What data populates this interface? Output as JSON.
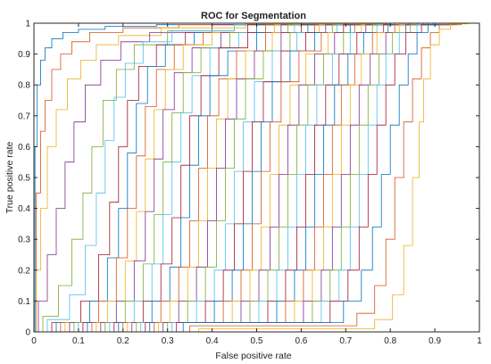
{
  "chart_data": {
    "type": "line",
    "title": "ROC for Segmentation",
    "xlabel": "False positive rate",
    "ylabel": "True positive rate",
    "xlim": [
      0,
      1
    ],
    "ylim": [
      0,
      1
    ],
    "x_ticks": [
      "0",
      "0.1",
      "0.2",
      "0.3",
      "0.4",
      "0.5",
      "0.6",
      "0.7",
      "0.8",
      "0.9",
      "1"
    ],
    "y_ticks": [
      "0",
      "0.1",
      "0.2",
      "0.3",
      "0.4",
      "0.5",
      "0.6",
      "0.7",
      "0.8",
      "0.9",
      "1"
    ],
    "grid": false,
    "legend": "none",
    "series_colors": [
      "#0072BD",
      "#D95319",
      "#EDB120",
      "#7E2F8E",
      "#77AC30",
      "#4DBEEE",
      "#A2142F"
    ],
    "series": [
      {
        "x": [
          0,
          0.005,
          0.01,
          0.02,
          0.03,
          0.05,
          0.08,
          0.12,
          0.2,
          0.35,
          0.6,
          1
        ],
        "y": [
          0,
          0.6,
          0.8,
          0.88,
          0.92,
          0.95,
          0.97,
          0.98,
          0.99,
          0.995,
          1,
          1
        ]
      },
      {
        "x": [
          0,
          0.01,
          0.02,
          0.03,
          0.05,
          0.07,
          0.1,
          0.15,
          0.25,
          0.4,
          0.7,
          1
        ],
        "y": [
          0,
          0.45,
          0.65,
          0.75,
          0.85,
          0.9,
          0.94,
          0.97,
          0.985,
          0.995,
          1,
          1
        ]
      },
      {
        "x": [
          0,
          0.01,
          0.02,
          0.04,
          0.06,
          0.09,
          0.12,
          0.16,
          0.22,
          0.35,
          0.6,
          1
        ],
        "y": [
          0,
          0.2,
          0.4,
          0.6,
          0.72,
          0.82,
          0.88,
          0.93,
          0.96,
          0.985,
          0.998,
          1
        ]
      },
      {
        "x": [
          0,
          0.02,
          0.04,
          0.06,
          0.08,
          0.1,
          0.13,
          0.17,
          0.22,
          0.3,
          0.5,
          1
        ],
        "y": [
          0,
          0.1,
          0.25,
          0.4,
          0.55,
          0.68,
          0.8,
          0.88,
          0.94,
          0.97,
          0.995,
          1
        ]
      },
      {
        "x": [
          0,
          0.04,
          0.07,
          0.1,
          0.12,
          0.14,
          0.17,
          0.2,
          0.25,
          0.35,
          0.55,
          1
        ],
        "y": [
          0,
          0.05,
          0.15,
          0.3,
          0.45,
          0.6,
          0.75,
          0.85,
          0.93,
          0.975,
          0.995,
          1
        ]
      },
      {
        "x": [
          0,
          0.06,
          0.1,
          0.13,
          0.15,
          0.17,
          0.19,
          0.22,
          0.27,
          0.35,
          0.55,
          1
        ],
        "y": [
          0,
          0.04,
          0.12,
          0.28,
          0.45,
          0.62,
          0.76,
          0.87,
          0.94,
          0.975,
          0.995,
          1
        ]
      },
      {
        "x": [
          0,
          0.08,
          0.13,
          0.16,
          0.18,
          0.2,
          0.22,
          0.25,
          0.3,
          0.38,
          0.58,
          1
        ],
        "y": [
          0,
          0.03,
          0.1,
          0.25,
          0.42,
          0.6,
          0.75,
          0.86,
          0.93,
          0.97,
          0.995,
          1
        ]
      },
      {
        "x": [
          0,
          0.1,
          0.15,
          0.18,
          0.2,
          0.22,
          0.24,
          0.27,
          0.32,
          0.4,
          0.6,
          1
        ],
        "y": [
          0,
          0.03,
          0.1,
          0.24,
          0.4,
          0.58,
          0.74,
          0.86,
          0.93,
          0.97,
          0.995,
          1
        ]
      },
      {
        "x": [
          0,
          0.12,
          0.17,
          0.2,
          0.22,
          0.24,
          0.26,
          0.29,
          0.34,
          0.42,
          0.62,
          1
        ],
        "y": [
          0,
          0.03,
          0.1,
          0.24,
          0.4,
          0.57,
          0.73,
          0.85,
          0.93,
          0.97,
          0.995,
          1
        ]
      },
      {
        "x": [
          0,
          0.14,
          0.19,
          0.22,
          0.24,
          0.26,
          0.28,
          0.31,
          0.36,
          0.44,
          0.64,
          1
        ],
        "y": [
          0,
          0.03,
          0.1,
          0.23,
          0.39,
          0.56,
          0.72,
          0.85,
          0.93,
          0.97,
          0.995,
          1
        ]
      },
      {
        "x": [
          0,
          0.16,
          0.21,
          0.24,
          0.26,
          0.28,
          0.3,
          0.33,
          0.38,
          0.46,
          0.65,
          1
        ],
        "y": [
          0,
          0.03,
          0.1,
          0.23,
          0.39,
          0.56,
          0.72,
          0.84,
          0.92,
          0.97,
          0.995,
          1
        ]
      },
      {
        "x": [
          0,
          0.18,
          0.23,
          0.26,
          0.28,
          0.3,
          0.32,
          0.35,
          0.4,
          0.48,
          0.66,
          1
        ],
        "y": [
          0,
          0.03,
          0.1,
          0.22,
          0.38,
          0.55,
          0.71,
          0.84,
          0.92,
          0.97,
          0.995,
          1
        ]
      },
      {
        "x": [
          0,
          0.2,
          0.25,
          0.28,
          0.3,
          0.32,
          0.34,
          0.37,
          0.42,
          0.5,
          0.67,
          1
        ],
        "y": [
          0,
          0.03,
          0.1,
          0.22,
          0.38,
          0.55,
          0.71,
          0.83,
          0.92,
          0.97,
          0.995,
          1
        ]
      },
      {
        "x": [
          0,
          0.22,
          0.27,
          0.3,
          0.32,
          0.34,
          0.36,
          0.39,
          0.44,
          0.52,
          0.68,
          1
        ],
        "y": [
          0,
          0.03,
          0.1,
          0.22,
          0.37,
          0.54,
          0.7,
          0.83,
          0.92,
          0.97,
          0.995,
          1
        ]
      },
      {
        "x": [
          0,
          0.24,
          0.29,
          0.32,
          0.34,
          0.36,
          0.38,
          0.41,
          0.46,
          0.54,
          0.69,
          1
        ],
        "y": [
          0,
          0.03,
          0.1,
          0.21,
          0.37,
          0.54,
          0.7,
          0.83,
          0.91,
          0.97,
          0.995,
          1
        ]
      },
      {
        "x": [
          0,
          0.26,
          0.31,
          0.34,
          0.36,
          0.38,
          0.4,
          0.43,
          0.48,
          0.56,
          0.7,
          1
        ],
        "y": [
          0,
          0.03,
          0.1,
          0.21,
          0.36,
          0.53,
          0.7,
          0.82,
          0.91,
          0.97,
          0.995,
          1
        ]
      },
      {
        "x": [
          0,
          0.28,
          0.33,
          0.36,
          0.38,
          0.4,
          0.42,
          0.45,
          0.5,
          0.57,
          0.71,
          1
        ],
        "y": [
          0,
          0.03,
          0.1,
          0.21,
          0.36,
          0.53,
          0.69,
          0.82,
          0.91,
          0.97,
          0.995,
          1
        ]
      },
      {
        "x": [
          0,
          0.3,
          0.35,
          0.38,
          0.4,
          0.42,
          0.44,
          0.47,
          0.52,
          0.59,
          0.72,
          1
        ],
        "y": [
          0,
          0.03,
          0.1,
          0.21,
          0.36,
          0.53,
          0.69,
          0.82,
          0.91,
          0.97,
          0.995,
          1
        ]
      },
      {
        "x": [
          0,
          0.32,
          0.37,
          0.4,
          0.42,
          0.44,
          0.46,
          0.49,
          0.54,
          0.61,
          0.73,
          1
        ],
        "y": [
          0,
          0.03,
          0.1,
          0.21,
          0.36,
          0.53,
          0.69,
          0.82,
          0.91,
          0.97,
          0.995,
          1
        ]
      },
      {
        "x": [
          0,
          0.34,
          0.39,
          0.42,
          0.44,
          0.46,
          0.48,
          0.51,
          0.56,
          0.62,
          0.74,
          1
        ],
        "y": [
          0,
          0.03,
          0.1,
          0.2,
          0.35,
          0.52,
          0.68,
          0.81,
          0.91,
          0.97,
          0.995,
          1
        ]
      },
      {
        "x": [
          0,
          0.36,
          0.41,
          0.44,
          0.46,
          0.48,
          0.5,
          0.53,
          0.58,
          0.64,
          0.75,
          1
        ],
        "y": [
          0,
          0.03,
          0.1,
          0.2,
          0.35,
          0.52,
          0.68,
          0.81,
          0.91,
          0.97,
          0.995,
          1
        ]
      },
      {
        "x": [
          0,
          0.38,
          0.43,
          0.46,
          0.48,
          0.5,
          0.52,
          0.55,
          0.6,
          0.66,
          0.76,
          1
        ],
        "y": [
          0,
          0.03,
          0.1,
          0.2,
          0.35,
          0.52,
          0.68,
          0.81,
          0.91,
          0.97,
          0.995,
          1
        ]
      },
      {
        "x": [
          0,
          0.4,
          0.45,
          0.48,
          0.5,
          0.52,
          0.54,
          0.57,
          0.62,
          0.67,
          0.77,
          1
        ],
        "y": [
          0,
          0.03,
          0.1,
          0.2,
          0.35,
          0.52,
          0.68,
          0.81,
          0.91,
          0.97,
          0.995,
          1
        ]
      },
      {
        "x": [
          0,
          0.42,
          0.47,
          0.5,
          0.52,
          0.54,
          0.56,
          0.59,
          0.63,
          0.69,
          0.78,
          1
        ],
        "y": [
          0,
          0.03,
          0.1,
          0.2,
          0.34,
          0.51,
          0.67,
          0.8,
          0.9,
          0.97,
          0.995,
          1
        ]
      },
      {
        "x": [
          0,
          0.44,
          0.49,
          0.52,
          0.54,
          0.56,
          0.58,
          0.61,
          0.65,
          0.7,
          0.79,
          1
        ],
        "y": [
          0,
          0.03,
          0.1,
          0.2,
          0.34,
          0.51,
          0.67,
          0.8,
          0.9,
          0.97,
          0.995,
          1
        ]
      },
      {
        "x": [
          0,
          0.46,
          0.51,
          0.54,
          0.56,
          0.58,
          0.6,
          0.63,
          0.67,
          0.72,
          0.8,
          1
        ],
        "y": [
          0,
          0.03,
          0.1,
          0.2,
          0.34,
          0.51,
          0.67,
          0.8,
          0.9,
          0.97,
          0.995,
          1
        ]
      },
      {
        "x": [
          0,
          0.48,
          0.53,
          0.56,
          0.58,
          0.6,
          0.62,
          0.65,
          0.69,
          0.73,
          0.81,
          1
        ],
        "y": [
          0,
          0.03,
          0.1,
          0.2,
          0.34,
          0.51,
          0.67,
          0.8,
          0.9,
          0.97,
          0.995,
          1
        ]
      },
      {
        "x": [
          0,
          0.5,
          0.55,
          0.58,
          0.6,
          0.62,
          0.64,
          0.67,
          0.7,
          0.75,
          0.82,
          1
        ],
        "y": [
          0,
          0.03,
          0.1,
          0.2,
          0.34,
          0.51,
          0.67,
          0.8,
          0.9,
          0.97,
          0.995,
          1
        ]
      },
      {
        "x": [
          0,
          0.52,
          0.57,
          0.6,
          0.62,
          0.64,
          0.66,
          0.69,
          0.72,
          0.76,
          0.83,
          1
        ],
        "y": [
          0,
          0.03,
          0.1,
          0.2,
          0.34,
          0.51,
          0.67,
          0.8,
          0.9,
          0.97,
          0.995,
          1
        ]
      },
      {
        "x": [
          0,
          0.54,
          0.59,
          0.62,
          0.64,
          0.66,
          0.68,
          0.7,
          0.74,
          0.78,
          0.84,
          1
        ],
        "y": [
          0,
          0.03,
          0.1,
          0.2,
          0.34,
          0.51,
          0.67,
          0.8,
          0.9,
          0.97,
          0.995,
          1
        ]
      },
      {
        "x": [
          0,
          0.56,
          0.61,
          0.64,
          0.66,
          0.68,
          0.7,
          0.72,
          0.75,
          0.79,
          0.85,
          1
        ],
        "y": [
          0,
          0.03,
          0.1,
          0.2,
          0.34,
          0.51,
          0.67,
          0.8,
          0.9,
          0.97,
          0.995,
          1
        ]
      },
      {
        "x": [
          0,
          0.58,
          0.63,
          0.66,
          0.68,
          0.7,
          0.72,
          0.74,
          0.77,
          0.81,
          0.86,
          1
        ],
        "y": [
          0,
          0.03,
          0.1,
          0.2,
          0.34,
          0.51,
          0.67,
          0.8,
          0.9,
          0.97,
          0.995,
          1
        ]
      },
      {
        "x": [
          0,
          0.6,
          0.65,
          0.68,
          0.7,
          0.72,
          0.74,
          0.76,
          0.79,
          0.82,
          0.87,
          1
        ],
        "y": [
          0,
          0.03,
          0.1,
          0.2,
          0.34,
          0.51,
          0.67,
          0.8,
          0.9,
          0.97,
          0.995,
          1
        ]
      },
      {
        "x": [
          0,
          0.62,
          0.67,
          0.7,
          0.72,
          0.74,
          0.76,
          0.78,
          0.8,
          0.84,
          0.88,
          1
        ],
        "y": [
          0,
          0.03,
          0.1,
          0.2,
          0.34,
          0.51,
          0.67,
          0.8,
          0.9,
          0.97,
          0.995,
          1
        ]
      },
      {
        "x": [
          0,
          0.64,
          0.69,
          0.72,
          0.74,
          0.76,
          0.78,
          0.8,
          0.82,
          0.85,
          0.89,
          1
        ],
        "y": [
          0,
          0.03,
          0.1,
          0.2,
          0.34,
          0.51,
          0.67,
          0.8,
          0.9,
          0.97,
          0.995,
          1
        ]
      },
      {
        "x": [
          0,
          0.67,
          0.72,
          0.75,
          0.77,
          0.79,
          0.81,
          0.83,
          0.85,
          0.87,
          0.9,
          1
        ],
        "y": [
          0,
          0.03,
          0.1,
          0.2,
          0.34,
          0.51,
          0.67,
          0.8,
          0.9,
          0.97,
          0.995,
          1
        ]
      },
      {
        "x": [
          0,
          0.7,
          0.75,
          0.78,
          0.8,
          0.82,
          0.84,
          0.86,
          0.88,
          0.9,
          0.92,
          1
        ],
        "y": [
          0,
          0.02,
          0.06,
          0.15,
          0.3,
          0.5,
          0.68,
          0.82,
          0.92,
          0.97,
          0.995,
          1
        ]
      },
      {
        "x": [
          0,
          0.74,
          0.79,
          0.82,
          0.84,
          0.86,
          0.87,
          0.88,
          0.9,
          0.92,
          0.95,
          1
        ],
        "y": [
          0,
          0.01,
          0.04,
          0.12,
          0.28,
          0.5,
          0.68,
          0.82,
          0.93,
          0.98,
          0.998,
          1
        ]
      }
    ]
  }
}
